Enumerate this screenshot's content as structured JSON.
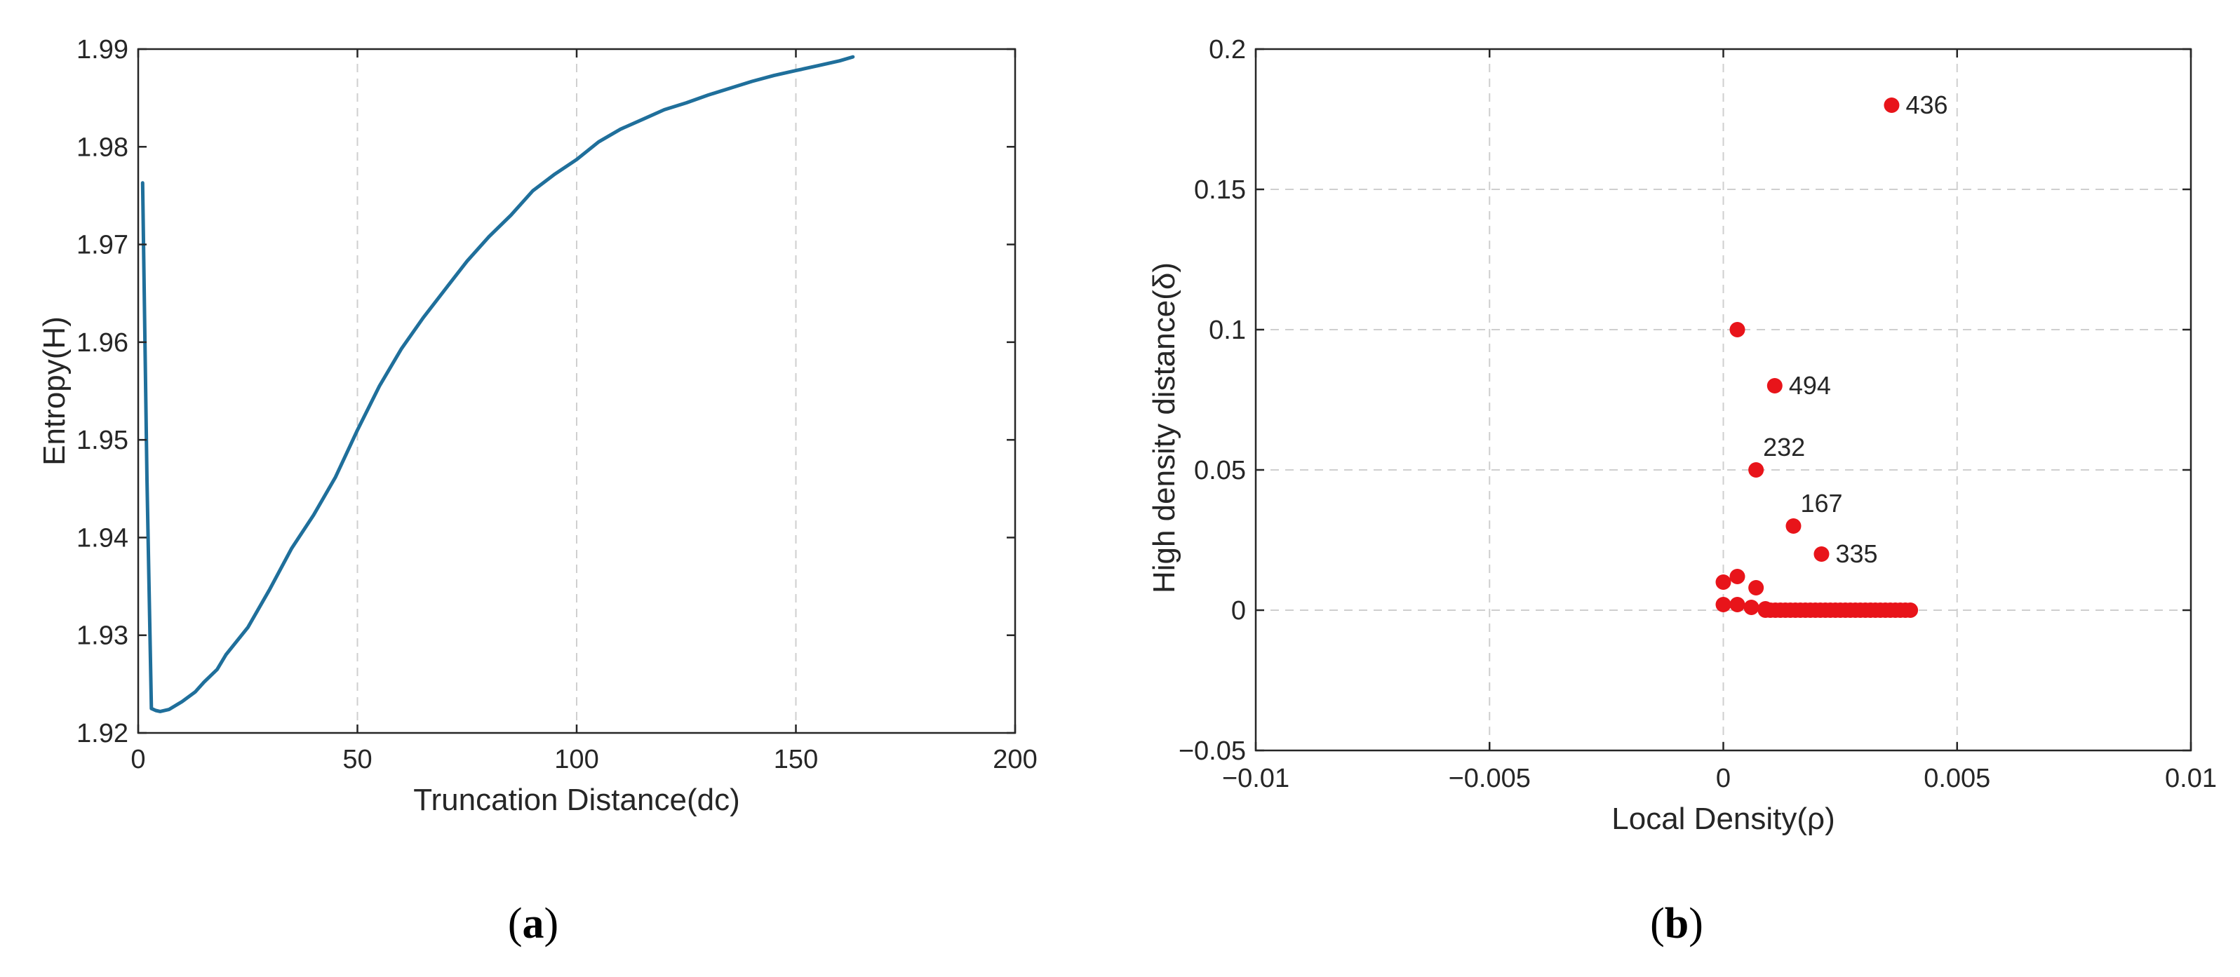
{
  "panels": [
    {
      "label_open": "(",
      "label_letter": "a",
      "label_close": ")"
    },
    {
      "label_open": "(",
      "label_letter": "b",
      "label_close": ")"
    }
  ],
  "chart_data": [
    {
      "type": "line",
      "xlabel": "Truncation Distance(dc)",
      "ylabel": "Entropy(H)",
      "xlim": [
        0,
        200
      ],
      "ylim": [
        1.92,
        1.99
      ],
      "xticks": [
        0,
        50,
        100,
        150,
        200
      ],
      "yticks": [
        1.92,
        1.93,
        1.94,
        1.95,
        1.96,
        1.97,
        1.98,
        1.99
      ],
      "xtick_labels": [
        "0",
        "50",
        "100",
        "150",
        "200"
      ],
      "ytick_labels": [
        "1.92",
        "1.93",
        "1.94",
        "1.95",
        "1.96",
        "1.97",
        "1.98",
        "1.99"
      ],
      "grid": "vertical dashed",
      "line_color": "#1f6f9b",
      "series": [
        {
          "x": [
            1,
            2,
            3,
            4,
            5,
            7,
            10,
            13,
            15,
            18,
            20,
            25,
            30,
            35,
            40,
            45,
            50,
            55,
            60,
            65,
            70,
            75,
            80,
            85,
            90,
            95,
            100,
            105,
            110,
            115,
            120,
            125,
            130,
            135,
            140,
            145,
            150,
            155,
            160,
            163
          ],
          "y": [
            1.9763,
            1.946,
            1.9225,
            1.9223,
            1.9222,
            1.9224,
            1.9232,
            1.9242,
            1.9252,
            1.9265,
            1.928,
            1.9308,
            1.9347,
            1.9389,
            1.9423,
            1.9462,
            1.951,
            1.9555,
            1.9593,
            1.9625,
            1.9654,
            1.9683,
            1.9708,
            1.973,
            1.9755,
            1.9772,
            1.9787,
            1.9805,
            1.9818,
            1.9828,
            1.9838,
            1.9845,
            1.9853,
            1.986,
            1.9867,
            1.9873,
            1.9878,
            1.9883,
            1.9888,
            1.9892
          ]
        }
      ]
    },
    {
      "type": "scatter",
      "xlabel": "Local Density(ρ)",
      "ylabel": "High density distance(δ)",
      "xlim": [
        -0.01,
        0.01
      ],
      "ylim": [
        -0.05,
        0.2
      ],
      "xticks": [
        -0.01,
        -0.005,
        0,
        0.005,
        0.01
      ],
      "yticks": [
        -0.05,
        0,
        0.05,
        0.1,
        0.15,
        0.2
      ],
      "xtick_labels": [
        "−0.01",
        "−0.005",
        "0",
        "0.005",
        "0.01"
      ],
      "ytick_labels": [
        "−0.05",
        "0",
        "0.05",
        "0.1",
        "0.15",
        "0.2"
      ],
      "grid": "both dashed",
      "marker_color": "#e8141a",
      "labeled_points": [
        {
          "x": 0.0036,
          "y": 0.18,
          "label": "436"
        },
        {
          "x": 0.0011,
          "y": 0.08,
          "label": "494"
        },
        {
          "x": 0.0007,
          "y": 0.05,
          "label": "232"
        },
        {
          "x": 0.0015,
          "y": 0.03,
          "label": "167"
        },
        {
          "x": 0.0021,
          "y": 0.02,
          "label": "335"
        }
      ],
      "points": [
        {
          "x": 0.0003,
          "y": 0.1
        },
        {
          "x": 0.0,
          "y": 0.01
        },
        {
          "x": 0.0003,
          "y": 0.012
        },
        {
          "x": 0.0007,
          "y": 0.008
        },
        {
          "x": 0.0,
          "y": 0.002
        },
        {
          "x": 0.0003,
          "y": 0.002
        },
        {
          "x": 0.0006,
          "y": 0.001
        },
        {
          "x": 0.0009,
          "y": 0.0005
        }
      ],
      "baseline_cluster": {
        "y": 0.0,
        "x_start": 0.0009,
        "x_end": 0.004,
        "count": 30
      }
    }
  ]
}
